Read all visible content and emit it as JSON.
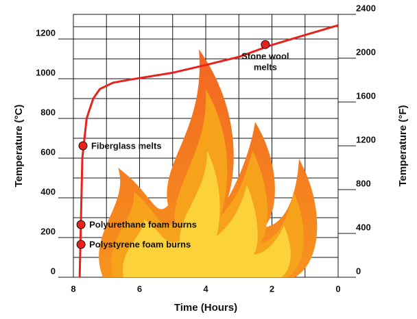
{
  "chart_data": {
    "type": "line",
    "x_label": "Time (Hours)",
    "y_label": "Temperature (°C)",
    "y2_label": "Temperature (°F)",
    "xlim": [
      8,
      0
    ],
    "xticks": [
      8,
      6,
      4,
      2,
      0
    ],
    "ylim": [
      0,
      1324
    ],
    "yticks": [
      0,
      200,
      400,
      600,
      800,
      1000,
      1200
    ],
    "y2lim": [
      0,
      2400
    ],
    "y2ticks": [
      0,
      400,
      800,
      1200,
      1600,
      2000,
      2400
    ],
    "grid": true,
    "series": [
      {
        "color": "#e8211c",
        "x": [
          7.81,
          7.77,
          7.73,
          7.6,
          7.4,
          7.2,
          6.8,
          6.3,
          5,
          4,
          3,
          2,
          1,
          0
        ],
        "values": [
          0,
          300,
          600,
          800,
          900,
          948,
          980,
          995,
          1030,
          1069,
          1110,
          1170,
          1220,
          1269
        ]
      }
    ],
    "annotations": [
      {
        "lines": [
          "Polystyrene foam burns"
        ],
        "x": 7.77,
        "y": 165
      },
      {
        "lines": [
          "Polyurethane foam burns"
        ],
        "x": 7.77,
        "y": 265
      },
      {
        "lines": [
          "Fiberglass melts"
        ],
        "x": 7.71,
        "y": 662
      },
      {
        "lines": [
          "Stone wool",
          "melts"
        ],
        "x": 2.2,
        "y": 1172
      }
    ]
  }
}
